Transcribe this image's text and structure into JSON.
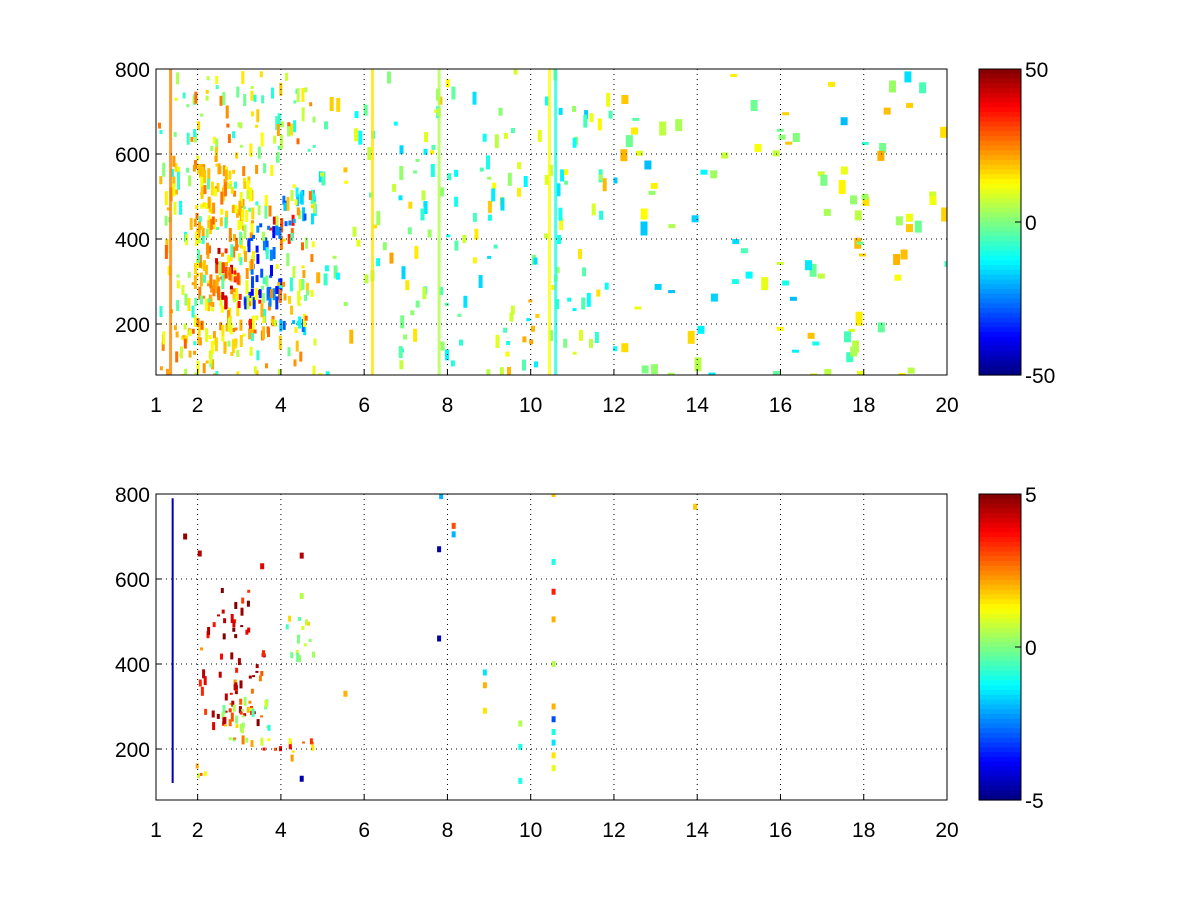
{
  "chart_data": [
    {
      "type": "heatmap",
      "title": "",
      "xlabel": "",
      "ylabel": "",
      "xlim": [
        1,
        20
      ],
      "ylim": [
        80,
        800
      ],
      "x_ticks": [
        "1",
        "2",
        "4",
        "6",
        "8",
        "10",
        "12",
        "14",
        "16",
        "18",
        "20"
      ],
      "y_ticks": [
        "200",
        "400",
        "600",
        "800"
      ],
      "grid": true,
      "colormap": "jet",
      "clim": [
        -50,
        50
      ],
      "colorbar_ticks": [
        "50",
        "0",
        "-50"
      ],
      "colorbar_location": "right",
      "regions": [
        {
          "x": [
            1.9,
            3.3
          ],
          "y": [
            150,
            580
          ],
          "value": 18
        },
        {
          "x": [
            2.4,
            3.0
          ],
          "y": [
            240,
            380
          ],
          "value": 38
        },
        {
          "x": [
            3.2,
            3.7
          ],
          "y": [
            250,
            280
          ],
          "value": 32
        },
        {
          "x": [
            3.2,
            3.9
          ],
          "y": [
            180,
            220
          ],
          "value": 30
        },
        {
          "x": [
            3.7,
            4.3
          ],
          "y": [
            400,
            460
          ],
          "value": 30
        },
        {
          "x": [
            3.1,
            4.0
          ],
          "y": [
            260,
            440
          ],
          "value": -30
        },
        {
          "x": [
            4.0,
            4.8
          ],
          "y": [
            440,
            520
          ],
          "value": -22
        },
        {
          "x": [
            3.9,
            4.8
          ],
          "y": [
            190,
            220
          ],
          "value": -20
        },
        {
          "x": [
            1.1,
            1.9
          ],
          "y": [
            130,
            200
          ],
          "value": 22
        },
        {
          "x": [
            1.0,
            4.8
          ],
          "y": [
            80,
            800
          ],
          "value": 8
        },
        {
          "x": [
            4.8,
            12.0
          ],
          "y": [
            80,
            800
          ],
          "value": 2
        },
        {
          "x": [
            12.0,
            20.0
          ],
          "y": [
            80,
            800
          ],
          "value": 1
        }
      ],
      "vertical_lines": [
        {
          "x": 1.35,
          "value": 25
        },
        {
          "x": 6.2,
          "value": 15
        },
        {
          "x": 10.45,
          "value": 12
        },
        {
          "x": 10.6,
          "value": -10
        },
        {
          "x": 7.8,
          "value": 5
        }
      ]
    },
    {
      "type": "heatmap",
      "title": "",
      "xlabel": "",
      "ylabel": "",
      "xlim": [
        1,
        20
      ],
      "ylim": [
        80,
        800
      ],
      "x_ticks": [
        "1",
        "2",
        "4",
        "6",
        "8",
        "10",
        "12",
        "14",
        "16",
        "18",
        "20"
      ],
      "y_ticks": [
        "200",
        "400",
        "600",
        "800"
      ],
      "grid": true,
      "colormap": "jet",
      "clim": [
        -5,
        5
      ],
      "colorbar_ticks": [
        "5",
        "0",
        "-5"
      ],
      "colorbar_location": "right",
      "regions": [
        {
          "x": [
            2.0,
            3.6
          ],
          "y": [
            260,
            440
          ],
          "value": 3.5
        },
        {
          "x": [
            2.2,
            3.3
          ],
          "y": [
            470,
            580
          ],
          "value": 4.5
        },
        {
          "x": [
            2.5,
            3.6
          ],
          "y": [
            220,
            320
          ],
          "value": 1.2
        },
        {
          "x": [
            3.5,
            4.8
          ],
          "y": [
            180,
            230
          ],
          "value": 2.5
        },
        {
          "x": [
            1.5,
            2.3
          ],
          "y": [
            140,
            170
          ],
          "value": 1.8
        },
        {
          "x": [
            4.0,
            4.8
          ],
          "y": [
            420,
            520
          ],
          "value": 0.3
        },
        {
          "x": [
            3.0,
            3.7
          ],
          "y": [
            250,
            330
          ],
          "value": 0.2
        }
      ],
      "vertical_lines": [
        {
          "x": 1.4,
          "y": [
            120,
            790
          ],
          "value": -4.5
        }
      ],
      "points": [
        {
          "x": 1.7,
          "y": 700,
          "value": 4.8
        },
        {
          "x": 2.05,
          "y": 660,
          "value": 4.5
        },
        {
          "x": 3.55,
          "y": 630,
          "value": 4.0
        },
        {
          "x": 4.5,
          "y": 655,
          "value": 4.5
        },
        {
          "x": 4.5,
          "y": 560,
          "value": 0.5
        },
        {
          "x": 4.5,
          "y": 130,
          "value": -4.5
        },
        {
          "x": 5.55,
          "y": 330,
          "value": 2.0
        },
        {
          "x": 7.85,
          "y": 795,
          "value": -2.0
        },
        {
          "x": 7.8,
          "y": 670,
          "value": -4.5
        },
        {
          "x": 7.8,
          "y": 460,
          "value": -4.5
        },
        {
          "x": 8.15,
          "y": 725,
          "value": 3.0
        },
        {
          "x": 8.15,
          "y": 705,
          "value": -2.0
        },
        {
          "x": 8.9,
          "y": 380,
          "value": -1.5
        },
        {
          "x": 8.9,
          "y": 350,
          "value": 2.0
        },
        {
          "x": 8.9,
          "y": 290,
          "value": 1.5
        },
        {
          "x": 9.75,
          "y": 260,
          "value": 0.5
        },
        {
          "x": 9.75,
          "y": 205,
          "value": -1.0
        },
        {
          "x": 9.75,
          "y": 125,
          "value": -1.0
        },
        {
          "x": 10.55,
          "y": 800,
          "value": 1.8
        },
        {
          "x": 10.55,
          "y": 640,
          "value": -1.0
        },
        {
          "x": 10.55,
          "y": 570,
          "value": 3.5
        },
        {
          "x": 10.55,
          "y": 505,
          "value": 2.0
        },
        {
          "x": 10.55,
          "y": 400,
          "value": 0.5
        },
        {
          "x": 10.55,
          "y": 300,
          "value": 2.0
        },
        {
          "x": 10.55,
          "y": 270,
          "value": -3.0
        },
        {
          "x": 10.55,
          "y": 240,
          "value": -1.0
        },
        {
          "x": 10.55,
          "y": 215,
          "value": -1.5
        },
        {
          "x": 10.55,
          "y": 185,
          "value": 1.5
        },
        {
          "x": 10.55,
          "y": 155,
          "value": 1.0
        },
        {
          "x": 13.95,
          "y": 770,
          "value": 1.8
        }
      ]
    }
  ]
}
